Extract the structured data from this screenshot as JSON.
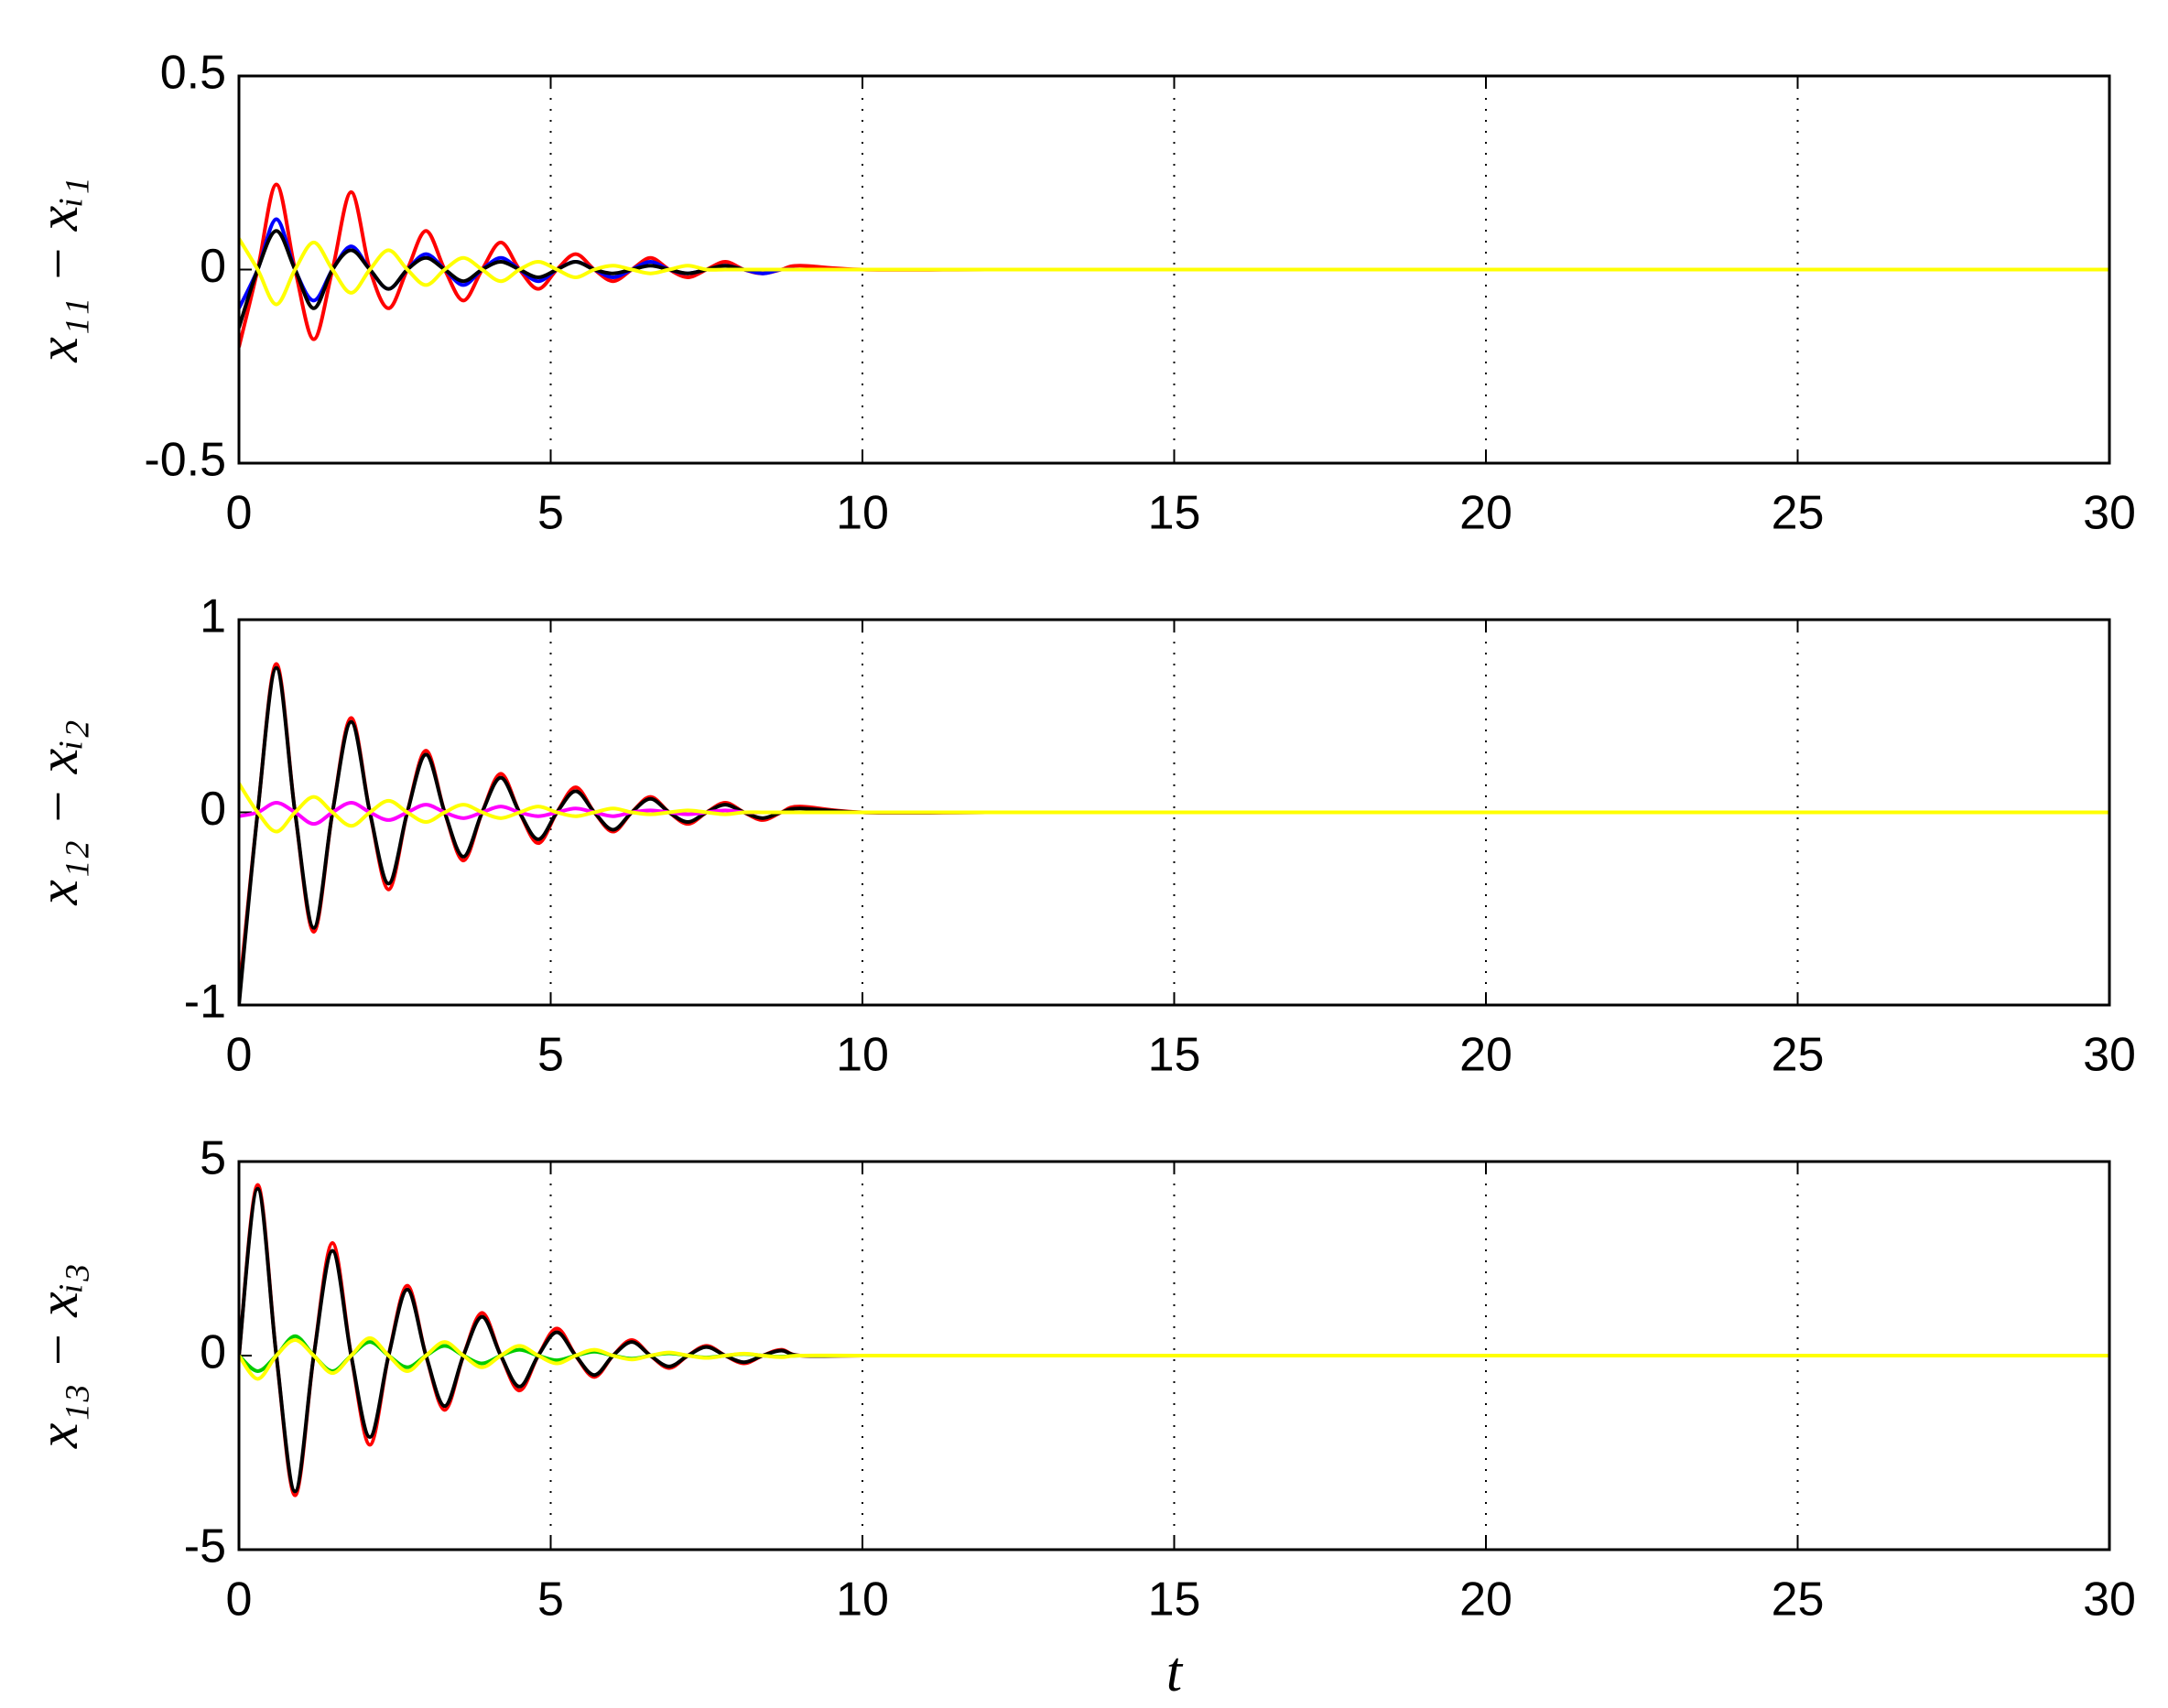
{
  "chart_data": [
    {
      "type": "line",
      "ylabel": "x₁₁ − xᵢ₁",
      "x": [
        0,
        0.3,
        0.6,
        0.9,
        1.2,
        1.5,
        1.8,
        2.1,
        2.4,
        2.7,
        3.0,
        3.3,
        3.6,
        3.9,
        4.2,
        4.5,
        4.8,
        5.1,
        5.4,
        5.7,
        6.0,
        6.3,
        6.6,
        6.9,
        7.2,
        7.5,
        7.8,
        8.1,
        8.4,
        8.7,
        9.0,
        10,
        12,
        14,
        16,
        18,
        20,
        22,
        24,
        26,
        28,
        30
      ],
      "series": [
        {
          "color": "#ff0000",
          "values": [
            -0.2,
            0,
            0.22,
            0,
            -0.18,
            0,
            0.2,
            0,
            -0.1,
            0,
            0.1,
            0,
            -0.08,
            0,
            0.07,
            0,
            -0.05,
            0,
            0.04,
            0,
            -0.03,
            0,
            0.03,
            0,
            -0.02,
            0,
            0.02,
            0,
            -0.01,
            0,
            0.01,
            0,
            0,
            0,
            0,
            0,
            0,
            0,
            0,
            0,
            0,
            0
          ]
        },
        {
          "color": "#0000ff",
          "values": [
            -0.1,
            0,
            0.13,
            0,
            -0.08,
            0,
            0.06,
            0,
            -0.05,
            0,
            0.04,
            0,
            -0.04,
            0,
            0.03,
            0,
            -0.03,
            0,
            0.02,
            0,
            -0.02,
            0,
            0.02,
            0,
            -0.01,
            0,
            0.01,
            0,
            -0.01,
            0,
            0,
            0,
            0,
            0,
            0,
            0,
            0,
            0,
            0,
            0,
            0,
            0
          ]
        },
        {
          "color": "#000000",
          "values": [
            -0.15,
            0,
            0.1,
            0,
            -0.1,
            0,
            0.05,
            0,
            -0.05,
            0,
            0.03,
            0,
            -0.03,
            0,
            0.02,
            0,
            -0.02,
            0,
            0.02,
            0,
            -0.01,
            0,
            0.01,
            0,
            -0.01,
            0,
            0.01,
            0,
            0,
            0,
            0,
            0,
            0,
            0,
            0,
            0,
            0,
            0,
            0,
            0,
            0,
            0
          ]
        },
        {
          "color": "#ffff00",
          "values": [
            0.08,
            0,
            -0.09,
            0,
            0.07,
            0,
            -0.06,
            0,
            0.05,
            0,
            -0.04,
            0,
            0.03,
            0,
            -0.03,
            0,
            0.02,
            0,
            -0.02,
            0,
            0.01,
            0,
            -0.01,
            0,
            0.01,
            0,
            0,
            0,
            0,
            0,
            0,
            0,
            0,
            0,
            0,
            0,
            0,
            0,
            0,
            0,
            0,
            0
          ]
        }
      ],
      "xlim": [
        0,
        30
      ],
      "xticks": [
        0,
        5,
        10,
        15,
        20,
        25,
        30
      ],
      "ylim": [
        -0.5,
        0.5
      ],
      "yticks": [
        -0.5,
        0,
        0.5
      ],
      "grid": "x"
    },
    {
      "type": "line",
      "ylabel": "x₁₂ − xᵢ₂",
      "x": [
        0,
        0.3,
        0.6,
        0.9,
        1.2,
        1.5,
        1.8,
        2.1,
        2.4,
        2.7,
        3.0,
        3.3,
        3.6,
        3.9,
        4.2,
        4.5,
        4.8,
        5.1,
        5.4,
        5.7,
        6.0,
        6.3,
        6.6,
        6.9,
        7.2,
        7.5,
        7.8,
        8.1,
        8.4,
        8.7,
        9.0,
        10,
        12,
        14,
        16,
        18,
        20,
        22,
        24,
        26,
        28,
        30
      ],
      "series": [
        {
          "color": "#ff0000",
          "values": [
            -0.95,
            0,
            0.77,
            0,
            -0.62,
            0,
            0.49,
            0,
            -0.4,
            0,
            0.32,
            0,
            -0.25,
            0,
            0.2,
            0,
            -0.16,
            0,
            0.13,
            0,
            -0.1,
            0,
            0.08,
            0,
            -0.06,
            0,
            0.05,
            0,
            -0.04,
            0,
            0.03,
            0,
            0,
            0,
            0,
            0,
            0,
            0,
            0,
            0,
            0,
            0
          ]
        },
        {
          "color": "#000000",
          "values": [
            -1,
            0,
            0.75,
            0,
            -0.6,
            0,
            0.47,
            0,
            -0.37,
            0,
            0.3,
            0,
            -0.23,
            0,
            0.18,
            0,
            -0.14,
            0,
            0.11,
            0,
            -0.09,
            0,
            0.07,
            0,
            -0.05,
            0,
            0.04,
            0,
            -0.03,
            0,
            0.02,
            0,
            0,
            0,
            0,
            0,
            0,
            0,
            0,
            0,
            0,
            0
          ]
        },
        {
          "color": "#ff00ff",
          "values": [
            -0.02,
            0,
            0.05,
            0,
            -0.06,
            0,
            0.05,
            0,
            -0.04,
            0,
            0.04,
            0,
            -0.03,
            0,
            0.03,
            0,
            -0.02,
            0,
            0.02,
            0,
            -0.02,
            0,
            0.01,
            0,
            -0.01,
            0,
            0.01,
            0,
            0,
            0,
            0,
            0,
            0,
            0,
            0,
            0,
            0,
            0,
            0,
            0,
            0,
            0
          ]
        },
        {
          "color": "#ffff00",
          "values": [
            0.15,
            0,
            -0.1,
            0,
            0.08,
            0,
            -0.07,
            0,
            0.06,
            0,
            -0.05,
            0,
            0.04,
            0,
            -0.03,
            0,
            0.03,
            0,
            -0.02,
            0,
            0.02,
            0,
            -0.01,
            0,
            0.01,
            0,
            -0.01,
            0,
            0,
            0,
            0,
            0,
            0,
            0,
            0,
            0,
            0,
            0,
            0,
            0,
            0,
            0
          ]
        }
      ],
      "xlim": [
        0,
        30
      ],
      "xticks": [
        0,
        5,
        10,
        15,
        20,
        25,
        30
      ],
      "ylim": [
        -1,
        1
      ],
      "yticks": [
        -1,
        0,
        1
      ],
      "grid": "x"
    },
    {
      "type": "line",
      "ylabel": "x₁₃ − xᵢ₃",
      "xlabel": "t",
      "x": [
        0,
        0.3,
        0.6,
        0.9,
        1.2,
        1.5,
        1.8,
        2.1,
        2.4,
        2.7,
        3.0,
        3.3,
        3.6,
        3.9,
        4.2,
        4.5,
        4.8,
        5.1,
        5.4,
        5.7,
        6.0,
        6.3,
        6.6,
        6.9,
        7.2,
        7.5,
        7.8,
        8.1,
        8.4,
        8.7,
        9.0,
        10,
        12,
        14,
        16,
        18,
        20,
        22,
        24,
        26,
        28,
        30
      ],
      "series": [
        {
          "color": "#ff0000",
          "values": [
            0,
            4.4,
            0,
            -3.6,
            0,
            2.9,
            0,
            -2.3,
            0,
            1.8,
            0,
            -1.4,
            0,
            1.1,
            0,
            -0.9,
            0,
            0.7,
            0,
            -0.55,
            0,
            0.4,
            0,
            -0.32,
            0,
            0.25,
            0,
            -0.2,
            0,
            0.15,
            0,
            0,
            0,
            0,
            0,
            0,
            0,
            0,
            0,
            0,
            0,
            0
          ]
        },
        {
          "color": "#000000",
          "values": [
            0,
            4.3,
            0,
            -3.5,
            0,
            2.7,
            0,
            -2.1,
            0,
            1.7,
            0,
            -1.3,
            0,
            1.0,
            0,
            -0.8,
            0,
            0.6,
            0,
            -0.5,
            0,
            0.35,
            0,
            -0.28,
            0,
            0.22,
            0,
            -0.17,
            0,
            0.13,
            0,
            0,
            0,
            0,
            0,
            0,
            0,
            0,
            0,
            0,
            0,
            0
          ]
        },
        {
          "color": "#00cc00",
          "values": [
            0,
            -0.4,
            0,
            0.5,
            0,
            -0.4,
            0,
            0.35,
            0,
            -0.3,
            0,
            0.25,
            0,
            -0.2,
            0,
            0.15,
            0,
            -0.12,
            0,
            0.1,
            0,
            -0.08,
            0,
            0.06,
            0,
            -0.05,
            0,
            0.04,
            0,
            -0.03,
            0,
            0,
            0,
            0,
            0,
            0,
            0,
            0,
            0,
            0,
            0,
            0
          ]
        },
        {
          "color": "#ffff00",
          "values": [
            0,
            -0.6,
            0,
            0.4,
            0,
            -0.45,
            0,
            0.45,
            0,
            -0.4,
            0,
            0.35,
            0,
            -0.3,
            0,
            0.25,
            0,
            -0.2,
            0,
            0.15,
            0,
            -0.1,
            0,
            0.08,
            0,
            -0.06,
            0,
            0.05,
            0,
            -0.04,
            0,
            0,
            0,
            0,
            0,
            0,
            0,
            0,
            0,
            0,
            0,
            0
          ]
        }
      ],
      "xlim": [
        0,
        30
      ],
      "xticks": [
        0,
        5,
        10,
        15,
        20,
        25,
        30
      ],
      "ylim": [
        -5,
        5
      ],
      "yticks": [
        -5,
        0,
        5
      ],
      "grid": "x"
    }
  ]
}
